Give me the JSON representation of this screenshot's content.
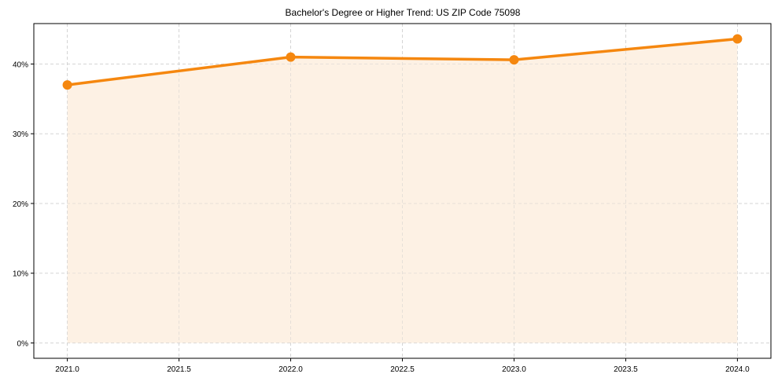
{
  "chart_data": {
    "type": "area",
    "title": "Bachelor's Degree or Higher Trend: US ZIP Code 75098",
    "xlabel": "",
    "ylabel": "",
    "x": [
      2021,
      2022,
      2023,
      2024
    ],
    "series": [
      {
        "name": "Bachelor's Degree or Higher",
        "values": [
          37.0,
          41.0,
          40.6,
          43.6
        ],
        "color": "#f5870f",
        "fill": "#fdf0e3"
      }
    ],
    "x_ticks": [
      "2021.0",
      "2021.5",
      "2022.0",
      "2022.5",
      "2023.0",
      "2023.5",
      "2024.0"
    ],
    "x_tick_values": [
      2021.0,
      2021.5,
      2022.0,
      2022.5,
      2023.0,
      2023.5,
      2024.0
    ],
    "y_ticks": [
      "0%",
      "10%",
      "20%",
      "30%",
      "40%"
    ],
    "y_tick_values": [
      0,
      10,
      20,
      30,
      40
    ],
    "xlim": [
      2020.85,
      2024.15
    ],
    "ylim": [
      -2.2,
      45.8
    ],
    "grid": true,
    "legend": "none",
    "markers": true
  }
}
